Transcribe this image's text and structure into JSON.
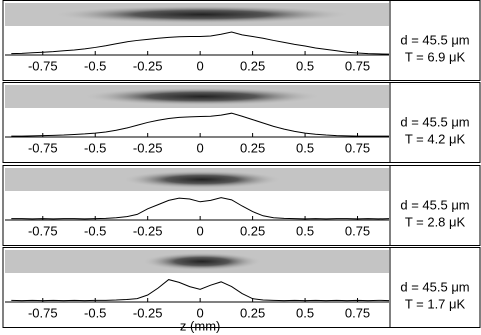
{
  "chart_data": [
    {
      "type": "line",
      "annotations": [
        "d = 45.5 μm",
        "T = 6.9 μK"
      ],
      "x": [
        -0.9,
        -0.85,
        -0.8,
        -0.75,
        -0.7,
        -0.65,
        -0.6,
        -0.55,
        -0.5,
        -0.45,
        -0.4,
        -0.35,
        -0.3,
        -0.25,
        -0.2,
        -0.15,
        -0.1,
        -0.05,
        0,
        0.05,
        0.1,
        0.15,
        0.2,
        0.25,
        0.3,
        0.35,
        0.4,
        0.45,
        0.5,
        0.55,
        0.6,
        0.65,
        0.7,
        0.75,
        0.8,
        0.85,
        0.9
      ],
      "values": [
        0.05,
        0.06,
        0.08,
        0.1,
        0.12,
        0.15,
        0.18,
        0.22,
        0.27,
        0.33,
        0.4,
        0.47,
        0.52,
        0.56,
        0.6,
        0.63,
        0.65,
        0.66,
        0.66,
        0.68,
        0.74,
        0.82,
        0.72,
        0.66,
        0.6,
        0.52,
        0.45,
        0.38,
        0.32,
        0.25,
        0.2,
        0.15,
        0.1,
        0.07,
        0.05,
        0.04,
        0.03
      ],
      "color": "#000000",
      "xlim": [
        -0.93,
        0.9
      ],
      "ylim": [
        0,
        1
      ],
      "xticks": [
        -0.75,
        -0.5,
        -0.25,
        0,
        0.25,
        0.5,
        0.75
      ]
    },
    {
      "type": "line",
      "annotations": [
        "d = 45.5 μm",
        "T = 4.2 μK"
      ],
      "x": [
        -0.9,
        -0.85,
        -0.8,
        -0.75,
        -0.7,
        -0.65,
        -0.6,
        -0.55,
        -0.5,
        -0.45,
        -0.4,
        -0.35,
        -0.3,
        -0.25,
        -0.2,
        -0.15,
        -0.1,
        -0.05,
        0,
        0.05,
        0.1,
        0.15,
        0.2,
        0.25,
        0.3,
        0.35,
        0.4,
        0.45,
        0.5,
        0.55,
        0.6,
        0.65,
        0.7,
        0.75,
        0.8,
        0.85,
        0.9
      ],
      "values": [
        0.03,
        0.03,
        0.04,
        0.05,
        0.06,
        0.07,
        0.09,
        0.11,
        0.14,
        0.18,
        0.24,
        0.32,
        0.42,
        0.52,
        0.6,
        0.66,
        0.7,
        0.72,
        0.73,
        0.74,
        0.78,
        0.85,
        0.74,
        0.62,
        0.5,
        0.38,
        0.28,
        0.2,
        0.14,
        0.1,
        0.07,
        0.05,
        0.04,
        0.03,
        0.03,
        0.03,
        0.03
      ],
      "color": "#000000",
      "xlim": [
        -0.93,
        0.9
      ],
      "ylim": [
        0,
        1
      ],
      "xticks": [
        -0.75,
        -0.5,
        -0.25,
        0,
        0.25,
        0.5,
        0.75
      ]
    },
    {
      "type": "line",
      "annotations": [
        "d = 45.5 μm",
        "T = 2.8 μK"
      ],
      "x": [
        -0.9,
        -0.85,
        -0.8,
        -0.75,
        -0.7,
        -0.65,
        -0.6,
        -0.55,
        -0.5,
        -0.45,
        -0.4,
        -0.35,
        -0.3,
        -0.25,
        -0.2,
        -0.15,
        -0.1,
        -0.05,
        0,
        0.05,
        0.1,
        0.15,
        0.2,
        0.25,
        0.3,
        0.35,
        0.4,
        0.45,
        0.5,
        0.55,
        0.6,
        0.65,
        0.7,
        0.75,
        0.8,
        0.85,
        0.9
      ],
      "values": [
        0.05,
        0.05,
        0.04,
        0.05,
        0.04,
        0.05,
        0.05,
        0.04,
        0.05,
        0.06,
        0.08,
        0.12,
        0.2,
        0.4,
        0.55,
        0.7,
        0.78,
        0.75,
        0.65,
        0.7,
        0.8,
        0.72,
        0.5,
        0.3,
        0.15,
        0.08,
        0.06,
        0.05,
        0.04,
        0.05,
        0.04,
        0.05,
        0.05,
        0.04,
        0.05,
        0.04,
        0.05
      ],
      "color": "#000000",
      "xlim": [
        -0.93,
        0.9
      ],
      "ylim": [
        0,
        1
      ],
      "xticks": [
        -0.75,
        -0.5,
        -0.25,
        0,
        0.25,
        0.5,
        0.75
      ]
    },
    {
      "type": "line",
      "annotations": [
        "d = 45.5 μm",
        "T = 1.7 μK"
      ],
      "xlabel": "z (mm)",
      "x": [
        -0.9,
        -0.85,
        -0.8,
        -0.75,
        -0.7,
        -0.65,
        -0.6,
        -0.55,
        -0.5,
        -0.45,
        -0.4,
        -0.35,
        -0.3,
        -0.25,
        -0.2,
        -0.15,
        -0.1,
        -0.05,
        0,
        0.05,
        0.1,
        0.15,
        0.2,
        0.25,
        0.3,
        0.35,
        0.4,
        0.45,
        0.5,
        0.55,
        0.6,
        0.65,
        0.7,
        0.75,
        0.8,
        0.85,
        0.9
      ],
      "values": [
        0.06,
        0.05,
        0.06,
        0.05,
        0.06,
        0.05,
        0.06,
        0.05,
        0.06,
        0.06,
        0.07,
        0.09,
        0.12,
        0.25,
        0.5,
        0.8,
        0.7,
        0.55,
        0.45,
        0.6,
        0.72,
        0.55,
        0.3,
        0.12,
        0.07,
        0.06,
        0.05,
        0.06,
        0.05,
        0.06,
        0.05,
        0.06,
        0.05,
        0.06,
        0.05,
        0.06,
        0.05
      ],
      "color": "#000000",
      "xlim": [
        -0.93,
        0.9
      ],
      "ylim": [
        0,
        1
      ],
      "xticks": [
        -0.75,
        -0.5,
        -0.25,
        0,
        0.25,
        0.5,
        0.75
      ]
    }
  ]
}
